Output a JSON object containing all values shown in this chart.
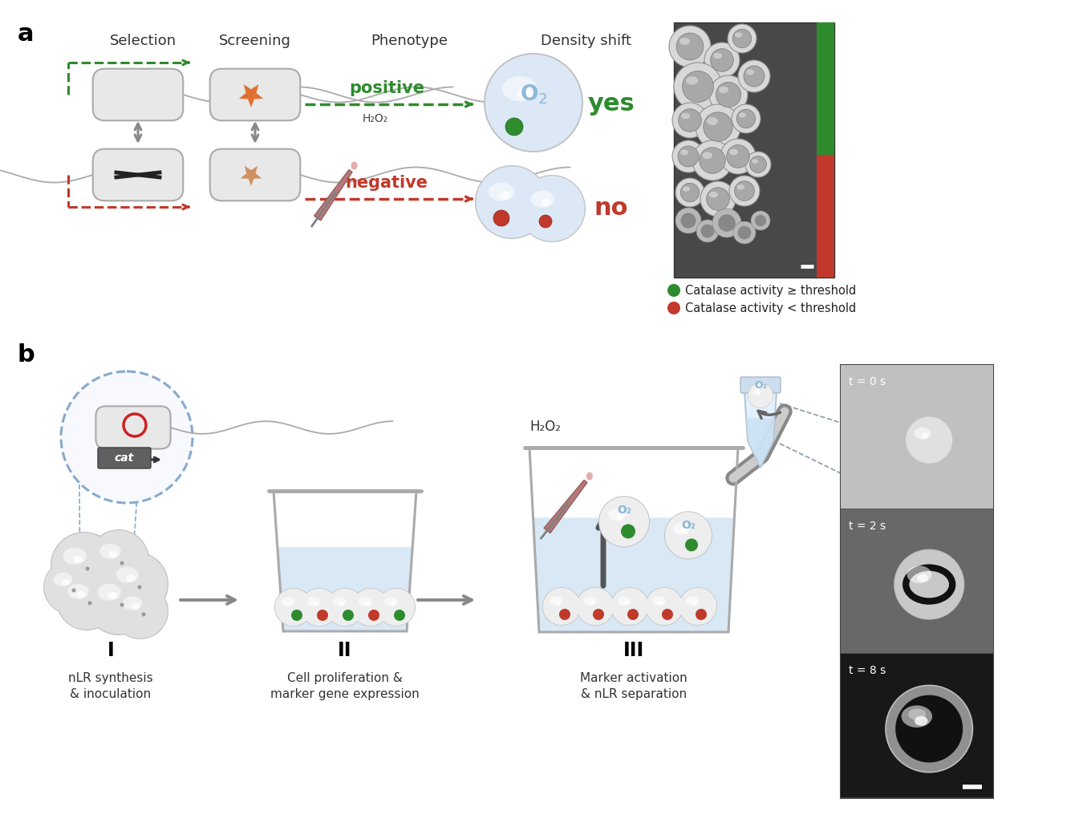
{
  "bg_color": "#ffffff",
  "panel_a": {
    "col_headers": [
      "Selection",
      "Screening",
      "Phenotype",
      "Density shift"
    ],
    "positive_label": "positive",
    "negative_label": "negative",
    "yes_label": "yes",
    "no_label": "no",
    "green_color": "#2e8b2e",
    "red_color": "#c0392b",
    "dashed_green": "#2e8b2e",
    "dashed_red": "#c0392b",
    "legend_green": "Catalase activity ≥ threshold",
    "legend_red": "Catalase activity < threshold",
    "h2o2_label": "H₂O₂"
  },
  "panel_b": {
    "step_labels": [
      "I",
      "II",
      "III"
    ],
    "step_desc": [
      "nLR synthesis\n& inoculation",
      "Cell proliferation &\nmarker gene expression",
      "Marker activation\n& nLR separation"
    ],
    "cat_label": "cat",
    "h2o2_label": "H₂O₂",
    "o2_label": "O₂",
    "time_labels": [
      "t = 0 s",
      "t = 2 s",
      "t = 8 s"
    ],
    "arrow_color": "#888888",
    "blue_water": "#c5ddf0",
    "beaker_edge": "#aaaaaa"
  }
}
